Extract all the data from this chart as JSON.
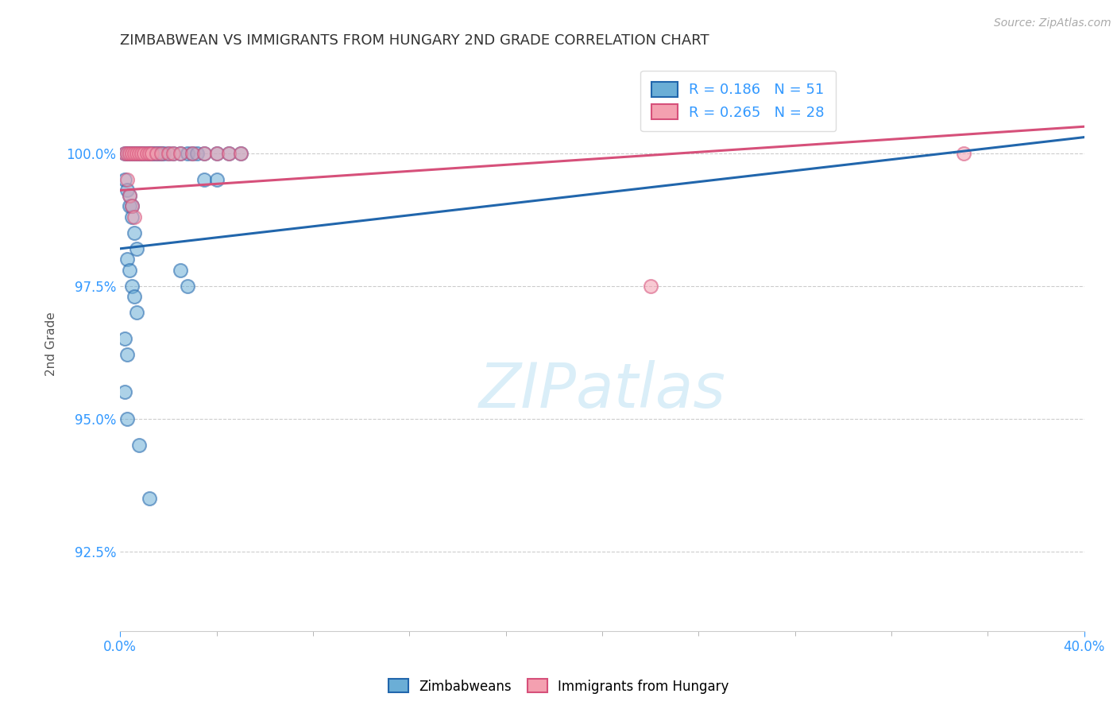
{
  "title": "ZIMBABWEAN VS IMMIGRANTS FROM HUNGARY 2ND GRADE CORRELATION CHART",
  "source": "Source: ZipAtlas.com",
  "ylabel": "2nd Grade",
  "xlim": [
    0.0,
    0.4
  ],
  "ylim": [
    91.0,
    101.8
  ],
  "yticks": [
    92.5,
    95.0,
    97.5,
    100.0
  ],
  "ytick_labels": [
    "92.5%",
    "95.0%",
    "97.5%",
    "100.0%"
  ],
  "xticks": [
    0.0,
    0.4
  ],
  "xtick_labels": [
    "0.0%",
    "40.0%"
  ],
  "blue_color": "#6baed6",
  "blue_line_color": "#2166ac",
  "pink_color": "#f4a0b0",
  "pink_line_color": "#d6507a",
  "R_blue": 0.186,
  "N_blue": 51,
  "R_pink": 0.265,
  "N_pink": 28,
  "blue_scatter_x": [
    0.002,
    0.003,
    0.004,
    0.005,
    0.006,
    0.007,
    0.008,
    0.009,
    0.01,
    0.011,
    0.012,
    0.013,
    0.014,
    0.015,
    0.016,
    0.017,
    0.018,
    0.02,
    0.022,
    0.025,
    0.028,
    0.03,
    0.032,
    0.035,
    0.04,
    0.045,
    0.05,
    0.002,
    0.003,
    0.004,
    0.005,
    0.006,
    0.007,
    0.003,
    0.004,
    0.005,
    0.006,
    0.007,
    0.002,
    0.003,
    0.002,
    0.003,
    0.025,
    0.028,
    0.004,
    0.005,
    0.035,
    0.04,
    0.008,
    0.012
  ],
  "blue_scatter_y": [
    100.0,
    100.0,
    100.0,
    100.0,
    100.0,
    100.0,
    100.0,
    100.0,
    100.0,
    100.0,
    100.0,
    100.0,
    100.0,
    100.0,
    100.0,
    100.0,
    100.0,
    100.0,
    100.0,
    100.0,
    100.0,
    100.0,
    100.0,
    100.0,
    100.0,
    100.0,
    100.0,
    99.5,
    99.3,
    99.0,
    98.8,
    98.5,
    98.2,
    98.0,
    97.8,
    97.5,
    97.3,
    97.0,
    96.5,
    96.2,
    95.5,
    95.0,
    97.8,
    97.5,
    99.2,
    99.0,
    99.5,
    99.5,
    94.5,
    93.5
  ],
  "pink_scatter_x": [
    0.002,
    0.003,
    0.004,
    0.005,
    0.006,
    0.007,
    0.008,
    0.009,
    0.01,
    0.011,
    0.012,
    0.013,
    0.015,
    0.017,
    0.02,
    0.022,
    0.025,
    0.03,
    0.035,
    0.04,
    0.045,
    0.05,
    0.003,
    0.004,
    0.005,
    0.006,
    0.22,
    0.35
  ],
  "pink_scatter_y": [
    100.0,
    100.0,
    100.0,
    100.0,
    100.0,
    100.0,
    100.0,
    100.0,
    100.0,
    100.0,
    100.0,
    100.0,
    100.0,
    100.0,
    100.0,
    100.0,
    100.0,
    100.0,
    100.0,
    100.0,
    100.0,
    100.0,
    99.5,
    99.2,
    99.0,
    98.8,
    97.5,
    100.0
  ],
  "blue_trendline_x": [
    0.0,
    0.4
  ],
  "blue_trendline_y": [
    98.2,
    100.3
  ],
  "pink_trendline_x": [
    0.0,
    0.4
  ],
  "pink_trendline_y": [
    99.3,
    100.5
  ]
}
